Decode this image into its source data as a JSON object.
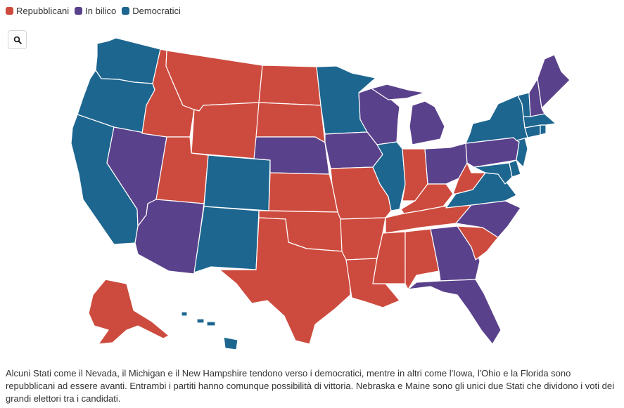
{
  "legend": [
    {
      "label": "Repubblicani",
      "color": "#cd4b3e"
    },
    {
      "label": "In bilico",
      "color": "#5a418c"
    },
    {
      "label": "Democratici",
      "color": "#1d6690"
    }
  ],
  "zoom": {
    "icon": "search-icon"
  },
  "states": [
    {
      "id": "WA",
      "cat": "Democratici"
    },
    {
      "id": "OR",
      "cat": "Democratici"
    },
    {
      "id": "CA",
      "cat": "Democratici"
    },
    {
      "id": "NV",
      "cat": "In bilico"
    },
    {
      "id": "ID",
      "cat": "Repubblicani"
    },
    {
      "id": "MT",
      "cat": "Repubblicani"
    },
    {
      "id": "WY",
      "cat": "Repubblicani"
    },
    {
      "id": "UT",
      "cat": "Repubblicani"
    },
    {
      "id": "AZ",
      "cat": "In bilico"
    },
    {
      "id": "CO",
      "cat": "Democratici"
    },
    {
      "id": "NM",
      "cat": "Democratici"
    },
    {
      "id": "ND",
      "cat": "Repubblicani"
    },
    {
      "id": "SD",
      "cat": "Repubblicani"
    },
    {
      "id": "NE",
      "cat": "In bilico"
    },
    {
      "id": "KS",
      "cat": "Repubblicani"
    },
    {
      "id": "OK",
      "cat": "Repubblicani"
    },
    {
      "id": "TX",
      "cat": "Repubblicani"
    },
    {
      "id": "MN",
      "cat": "Democratici"
    },
    {
      "id": "IA",
      "cat": "In bilico"
    },
    {
      "id": "MO",
      "cat": "Repubblicani"
    },
    {
      "id": "AR",
      "cat": "Repubblicani"
    },
    {
      "id": "LA",
      "cat": "Repubblicani"
    },
    {
      "id": "WI",
      "cat": "In bilico"
    },
    {
      "id": "IL",
      "cat": "Democratici"
    },
    {
      "id": "MI",
      "cat": "In bilico"
    },
    {
      "id": "IN",
      "cat": "Repubblicani"
    },
    {
      "id": "OH",
      "cat": "In bilico"
    },
    {
      "id": "KY",
      "cat": "Repubblicani"
    },
    {
      "id": "TN",
      "cat": "Repubblicani"
    },
    {
      "id": "MS",
      "cat": "Repubblicani"
    },
    {
      "id": "AL",
      "cat": "Repubblicani"
    },
    {
      "id": "GA",
      "cat": "In bilico"
    },
    {
      "id": "FL",
      "cat": "In bilico"
    },
    {
      "id": "SC",
      "cat": "Repubblicani"
    },
    {
      "id": "NC",
      "cat": "In bilico"
    },
    {
      "id": "VA",
      "cat": "Democratici"
    },
    {
      "id": "WV",
      "cat": "Repubblicani"
    },
    {
      "id": "PA",
      "cat": "In bilico"
    },
    {
      "id": "NY",
      "cat": "Democratici"
    },
    {
      "id": "VT",
      "cat": "Democratici"
    },
    {
      "id": "NH",
      "cat": "In bilico"
    },
    {
      "id": "ME",
      "cat": "In bilico"
    },
    {
      "id": "MA",
      "cat": "Democratici"
    },
    {
      "id": "RI",
      "cat": "Democratici"
    },
    {
      "id": "CT",
      "cat": "Democratici"
    },
    {
      "id": "NJ",
      "cat": "Democratici"
    },
    {
      "id": "DE",
      "cat": "Democratici"
    },
    {
      "id": "MD",
      "cat": "Democratici"
    },
    {
      "id": "AK",
      "cat": "Repubblicani"
    },
    {
      "id": "HI",
      "cat": "Democratici"
    }
  ],
  "caption": "Alcuni Stati come il Nevada, il Michigan e il New Hampshire tendono verso i democratici, mentre in altri come l'Iowa, l'Ohio e la Florida sono repubblicani ad essere avanti. Entrambi i partiti hanno comunque possibilità di vittoria. Nebraska e Maine sono gli unici due Stati che dividono i voti dei grandi elettori tra i candidati."
}
